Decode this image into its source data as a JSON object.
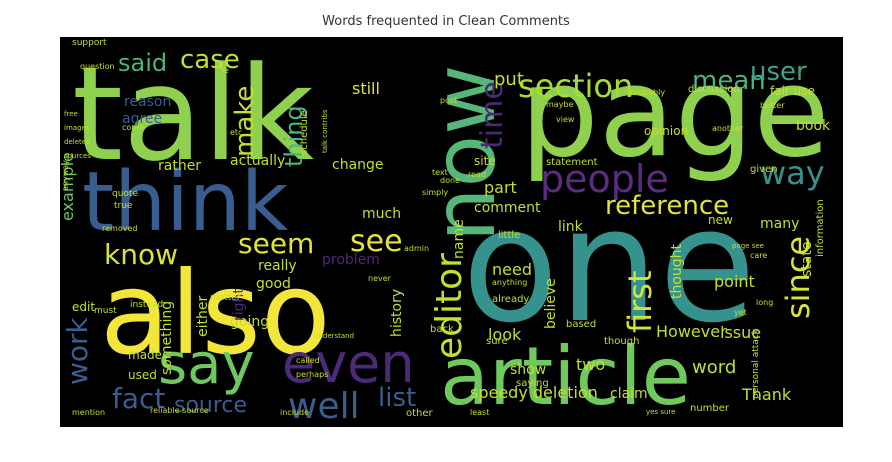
{
  "title": "Words frequented in Clean Comments",
  "words": {
    "talk": "talk",
    "page": "page",
    "one": "one",
    "also": "also",
    "article": "article",
    "think": "think",
    "now": "now",
    "even": "even",
    "say": "say",
    "people": "people",
    "section": "section",
    "editor": "editor",
    "reference": "reference",
    "mean": "mean",
    "user": "user",
    "time": "time",
    "way": "way",
    "since": "since",
    "well": "well",
    "first": "first",
    "seem": "seem",
    "see": "see",
    "know": "know",
    "fact": "fact",
    "source": "source",
    "work": "work",
    "list": "list",
    "said": "said",
    "case": "case",
    "make": "make",
    "thing": "thing",
    "put": "put",
    "still": "still",
    "example": "example",
    "reason": "reason",
    "agree": "agree",
    "rather": "rather",
    "actually": "actually",
    "change": "change",
    "much": "much",
    "problem": "problem",
    "really": "really",
    "good": "good",
    "going": "going",
    "something": "something",
    "right": "right",
    "either": "either",
    "made": "made",
    "used": "used",
    "need": "need",
    "look": "look",
    "believe": "believe",
    "thought": "thought",
    "However": "However",
    "point": "point",
    "issue": "issue",
    "word": "word",
    "claim": "claim",
    "Thank": "Thank",
    "two": "two",
    "show": "show",
    "speedy_deletion": "speedy deletion",
    "history": "history",
    "name": "name",
    "part": "part",
    "comment": "comment",
    "link": "link",
    "many": "many",
    "book": "book",
    "opinion": "opinion",
    "fair_use": "fair use",
    "discussion": "discussion",
    "state": "state",
    "edit": "edit",
    "site": "site",
    "statement": "statement",
    "given": "given",
    "another": "another",
    "new": "new",
    "little": "little",
    "already": "already",
    "number": "number",
    "other": "other",
    "saying": "saying",
    "sure": "sure",
    "though": "though",
    "based": "based",
    "back": "back",
    "personal_attack": "personal attack",
    "support": "support",
    "information": "information",
    "matter": "matter",
    "quote": "quote",
    "true": "true",
    "removed": "removed",
    "instead": "instead",
    "must": "must",
    "mention": "mention",
    "include": "include",
    "least": "least",
    "perhaps": "perhaps",
    "called": "called",
    "post": "post",
    "done": "done",
    "view": "view",
    "probably": "probably",
    "maybe": "maybe",
    "admin": "admin",
    "text": "text",
    "simply": "simply",
    "etc": "etc",
    "come": "come",
    "better": "better",
    "anyway": "anyway",
    "understand": "understand",
    "long": "long",
    "yet": "yet",
    "read": "read",
    "talk_contribs": "talk contribs",
    "seems": "seems",
    "anything": "anything",
    "care": "care",
    "reliable_source": "reliable source",
    "never": "never",
    "question": "question",
    "sources": "sources",
    "deleted": "deleted",
    "images": "images",
    "free": "free",
    "ye": "Ye",
    "schedule": "schedule",
    "page_see": "page see",
    "yes_sure": "yes sure"
  }
}
